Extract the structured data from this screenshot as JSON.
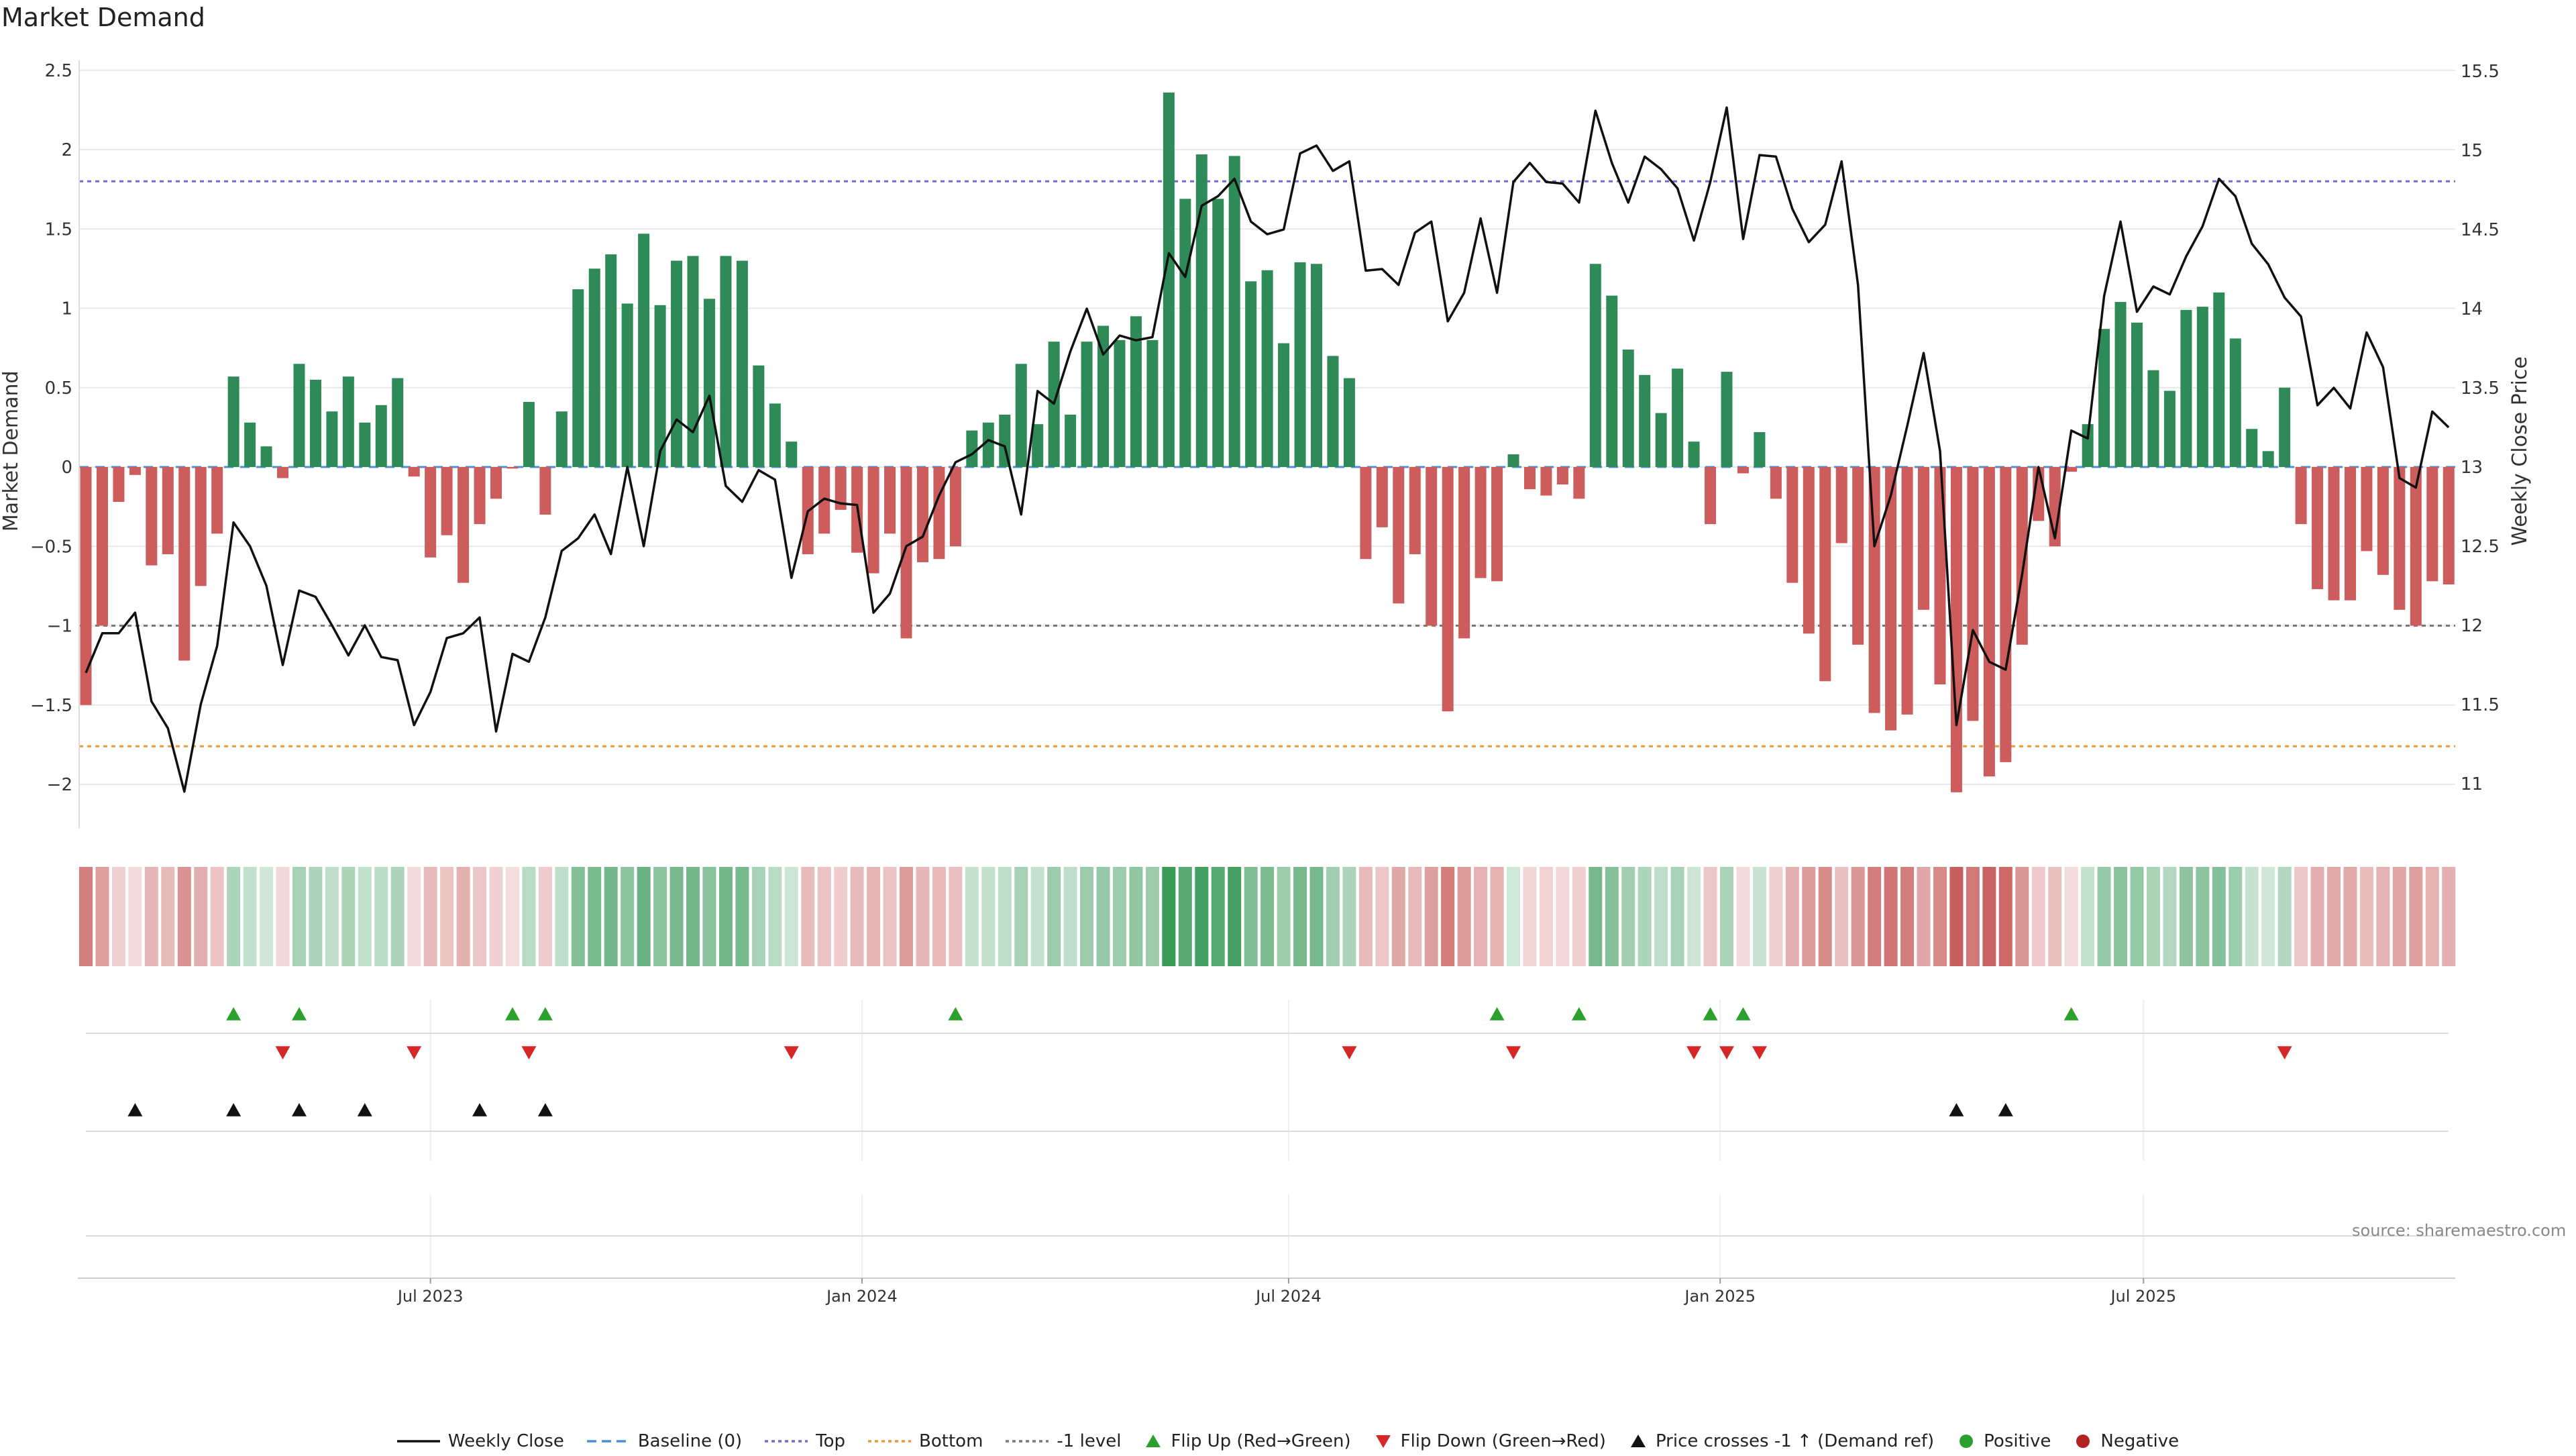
{
  "title": "Market Demand",
  "source": "source: sharemaestro.com",
  "colors": {
    "positive": "#2e8b57",
    "negative": "#cd5c5c",
    "price": "#111111",
    "top": "#7b68c4",
    "bottom": "#e69a3c",
    "minus1": "#777777",
    "baseline": "#4c8fd6",
    "flip_up": "#2ca02c",
    "flip_down": "#d62728",
    "cross": "#111111",
    "grid": "#e8e8e8"
  },
  "legend": [
    {
      "label": "Weekly Close",
      "icon": "line-solid",
      "color": "#111111"
    },
    {
      "label": "Baseline (0)",
      "icon": "line-dashed",
      "color": "#4c8fd6"
    },
    {
      "label": "Top",
      "icon": "line-dotted",
      "color": "#7b68c4"
    },
    {
      "label": "Bottom",
      "icon": "line-dotted",
      "color": "#e69a3c"
    },
    {
      "label": "-1 level",
      "icon": "line-dotted",
      "color": "#777777"
    },
    {
      "label": "Flip Up (Red→Green)",
      "icon": "triangle-up",
      "color": "#2ca02c"
    },
    {
      "label": "Flip Down (Green→Red)",
      "icon": "triangle-down",
      "color": "#d62728"
    },
    {
      "label": "Price crosses -1 ↑ (Demand ref)",
      "icon": "triangle-up",
      "color": "#111111"
    },
    {
      "label": "Positive",
      "icon": "circle",
      "color": "#2ca02c"
    },
    {
      "label": "Negative",
      "icon": "circle",
      "color": "#b22222"
    }
  ],
  "chart_data": {
    "type": "bar",
    "title": "Market Demand",
    "ylabel": "Market Demand",
    "y2label": "Weekly Close Price",
    "ylim": [
      -2.3,
      2.5
    ],
    "y2lim": [
      10.8,
      15.6
    ],
    "yticks": [
      2.5,
      2,
      1.5,
      1,
      0.5,
      0,
      -0.5,
      -1,
      -1.5,
      -2
    ],
    "ytick_labels": [
      "2.5",
      "2",
      "1.5",
      "1",
      "0.5",
      "0",
      "−0.5",
      "−1",
      "−1.5",
      "−2"
    ],
    "y2ticks": [
      15.5,
      15,
      14.5,
      14,
      13.5,
      13,
      12.5,
      12,
      11.5,
      11
    ],
    "y2tick_labels": [
      "15.5",
      "15",
      "14.5",
      "14",
      "13.5",
      "13",
      "12.5",
      "12",
      "11.5",
      "11"
    ],
    "x_ticks": [
      {
        "label": "Jul 2023",
        "week": 21
      },
      {
        "label": "Jan 2024",
        "week": 47.3
      },
      {
        "label": "Jul 2024",
        "week": 73.3
      },
      {
        "label": "Jan 2025",
        "week": 99.6
      },
      {
        "label": "Jul 2025",
        "week": 125.4
      }
    ],
    "reference_lines": {
      "top": 1.8,
      "bottom": -1.76,
      "minus1": -1.0,
      "baseline": 0
    },
    "demand": [
      -1.5,
      -1.0,
      -0.22,
      -0.05,
      -0.62,
      -0.55,
      -1.22,
      -0.75,
      -0.42,
      0.57,
      0.28,
      0.13,
      -0.07,
      0.65,
      0.55,
      0.35,
      0.57,
      0.28,
      0.39,
      0.56,
      -0.06,
      -0.57,
      -0.43,
      -0.73,
      -0.36,
      -0.2,
      -0.01,
      0.41,
      -0.3,
      0.35,
      1.12,
      1.25,
      1.34,
      1.03,
      1.47,
      1.02,
      1.3,
      1.33,
      1.06,
      1.33,
      1.3,
      0.64,
      0.4,
      0.16,
      -0.55,
      -0.42,
      -0.27,
      -0.54,
      -0.67,
      -0.42,
      -1.08,
      -0.6,
      -0.58,
      -0.5,
      0.23,
      0.28,
      0.33,
      0.65,
      0.27,
      0.79,
      0.33,
      0.79,
      0.89,
      0.8,
      0.95,
      0.8,
      2.36,
      1.69,
      1.97,
      1.69,
      1.96,
      1.17,
      1.24,
      0.78,
      1.29,
      1.28,
      0.7,
      0.56,
      -0.58,
      -0.38,
      -0.86,
      -0.55,
      -1.0,
      -1.54,
      -1.08,
      -0.7,
      -0.72,
      0.08,
      -0.14,
      -0.18,
      -0.11,
      -0.2,
      1.28,
      1.08,
      0.74,
      0.58,
      0.34,
      0.62,
      0.16,
      -0.36,
      0.6,
      -0.04,
      0.22,
      -0.2,
      -0.73,
      -1.05,
      -1.35,
      -0.48,
      -1.12,
      -1.55,
      -1.66,
      -1.56,
      -0.9,
      -1.37,
      -2.05,
      -1.6,
      -1.95,
      -1.86,
      -1.12,
      -0.34,
      -0.5,
      -0.03,
      0.27,
      0.87,
      1.04,
      0.91,
      0.61,
      0.48,
      0.99,
      1.01,
      1.1,
      0.81,
      0.24,
      0.1,
      0.5,
      -0.36,
      -0.77,
      -0.84,
      -0.84,
      -0.53,
      -0.68,
      -0.9,
      -1.0,
      -0.72,
      -0.74
    ],
    "weekly_close": [
      11.7,
      11.95,
      11.95,
      12.08,
      11.52,
      11.35,
      10.95,
      11.5,
      11.87,
      12.65,
      12.5,
      12.25,
      11.75,
      12.22,
      12.18,
      12.0,
      11.81,
      12.0,
      11.8,
      11.78,
      11.37,
      11.58,
      11.92,
      11.95,
      12.05,
      11.33,
      11.82,
      11.77,
      12.05,
      12.47,
      12.55,
      12.7,
      12.45,
      13.0,
      12.5,
      13.1,
      13.3,
      13.22,
      13.45,
      12.88,
      12.78,
      12.98,
      12.92,
      12.3,
      12.72,
      12.8,
      12.77,
      12.76,
      12.08,
      12.2,
      12.5,
      12.56,
      12.82,
      13.03,
      13.08,
      13.17,
      13.13,
      12.7,
      13.48,
      13.4,
      13.73,
      14.0,
      13.71,
      13.83,
      13.8,
      13.82,
      14.35,
      14.2,
      14.65,
      14.71,
      14.82,
      14.55,
      14.47,
      14.5,
      14.98,
      15.03,
      14.87,
      14.93,
      14.24,
      14.25,
      14.15,
      14.48,
      14.55,
      13.92,
      14.1,
      14.57,
      14.1,
      14.8,
      14.92,
      14.8,
      14.79,
      14.67,
      15.25,
      14.92,
      14.67,
      14.96,
      14.88,
      14.76,
      14.43,
      14.8,
      15.27,
      14.44,
      14.97,
      14.96,
      14.63,
      14.42,
      14.53,
      14.93,
      14.15,
      12.5,
      12.82,
      13.26,
      13.72,
      13.1,
      11.37,
      11.97,
      11.77,
      11.72,
      12.32,
      13.0,
      12.55,
      13.23,
      13.18,
      14.08,
      14.55,
      13.98,
      14.14,
      14.09,
      14.33,
      14.52,
      14.82,
      14.71,
      14.41,
      14.28,
      14.07,
      13.95,
      13.39,
      13.5,
      13.37,
      13.85,
      13.63,
      12.93,
      12.87,
      13.35,
      13.25
    ],
    "flip_up_weeks": [
      9,
      13,
      26,
      28,
      53,
      86,
      91,
      99,
      101,
      121
    ],
    "flip_down_weeks": [
      12,
      20,
      27,
      43,
      77,
      87,
      98,
      100,
      102,
      134
    ],
    "price_cross_weeks": [
      3,
      9,
      13,
      17,
      24,
      28,
      114,
      117
    ]
  }
}
